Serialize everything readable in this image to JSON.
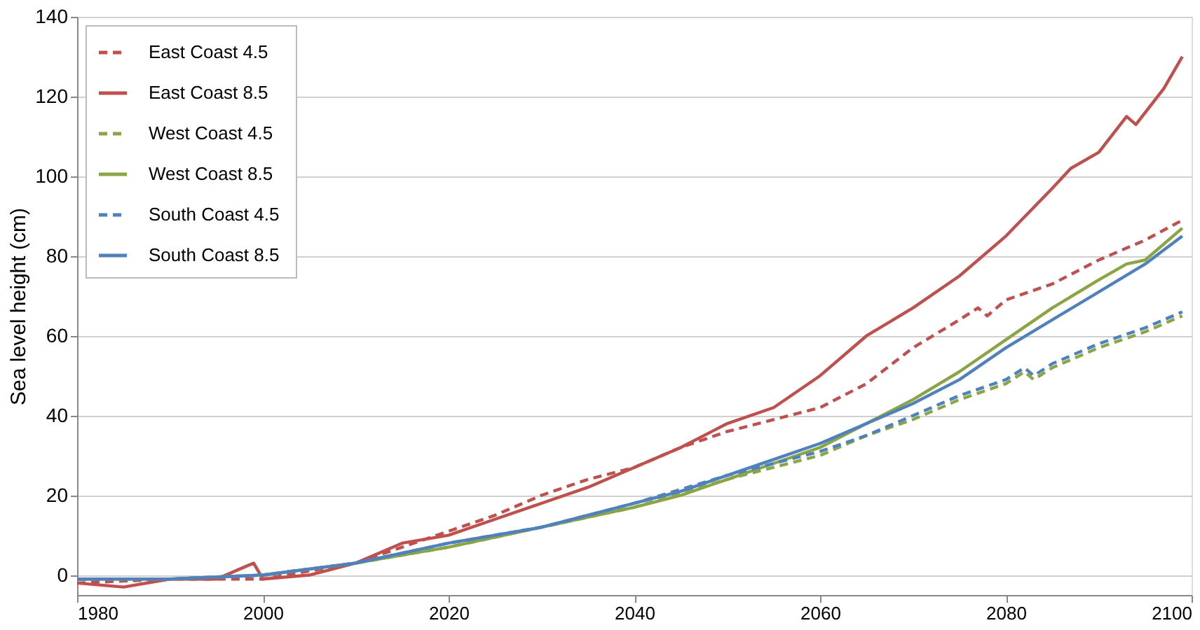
{
  "chart_data": {
    "type": "line",
    "ylabel": "Sea level height (cm)",
    "xlim": [
      1980,
      2100
    ],
    "xticks": [
      1980,
      2000,
      2020,
      2040,
      2060,
      2080,
      2100
    ],
    "ylim": [
      -5,
      140
    ],
    "yticks": [
      0,
      20,
      40,
      60,
      80,
      100,
      120,
      140
    ],
    "grid": "y",
    "legend": "top left",
    "marker": "none",
    "series": [
      {
        "name": "East Coast  4.5",
        "color": "#c0504d",
        "line_style": "dashed",
        "x": [
          1980,
          1990,
          2000,
          2010,
          2015,
          2020,
          2025,
          2030,
          2035,
          2040,
          2045,
          2050,
          2055,
          2060,
          2065,
          2070,
          2075,
          2077,
          2078,
          2080,
          2085,
          2090,
          2095,
          2099
        ],
        "values": [
          -2,
          -1,
          -1,
          3,
          7,
          11,
          15,
          20,
          24,
          27,
          32,
          36,
          39,
          42,
          48,
          57,
          64,
          67,
          65,
          69,
          73,
          79,
          84,
          89
        ]
      },
      {
        "name": "East Coast  8.5",
        "color": "#c0504d",
        "line_style": "solid",
        "x": [
          1980,
          1985,
          1990,
          1995,
          1998,
          1999,
          2000,
          2005,
          2010,
          2015,
          2020,
          2025,
          2030,
          2035,
          2040,
          2045,
          2050,
          2055,
          2060,
          2063,
          2065,
          2070,
          2075,
          2080,
          2085,
          2087,
          2090,
          2093,
          2094,
          2097,
          2099
        ],
        "values": [
          -2,
          -3,
          -1,
          -1,
          2,
          3,
          -1,
          0,
          3,
          8,
          10,
          14,
          18,
          22,
          27,
          32,
          38,
          42,
          50,
          56,
          60,
          67,
          75,
          85,
          97,
          102,
          106,
          115,
          113,
          122,
          130
        ]
      },
      {
        "name": "West Coast  4.5",
        "color": "#8aa644",
        "line_style": "dashed",
        "x": [
          1980,
          1990,
          2000,
          2010,
          2020,
          2030,
          2040,
          2050,
          2060,
          2065,
          2070,
          2075,
          2080,
          2082,
          2083,
          2085,
          2090,
          2095,
          2099
        ],
        "values": [
          -1,
          -1,
          0,
          3,
          7,
          12,
          17,
          24,
          30,
          35,
          39,
          44,
          48,
          51,
          49,
          52,
          57,
          61,
          65
        ]
      },
      {
        "name": "West Coast  8.5",
        "color": "#8aa644",
        "line_style": "solid",
        "x": [
          1980,
          1990,
          2000,
          2010,
          2020,
          2030,
          2040,
          2045,
          2050,
          2055,
          2060,
          2065,
          2070,
          2075,
          2080,
          2085,
          2090,
          2093,
          2095,
          2099
        ],
        "values": [
          -1,
          -1,
          0,
          3,
          7,
          12,
          17,
          20,
          24,
          28,
          32,
          38,
          44,
          51,
          59,
          67,
          74,
          78,
          79,
          87
        ]
      },
      {
        "name": "South Coast  4.5",
        "color": "#4f81bd",
        "line_style": "dashed",
        "x": [
          1980,
          1990,
          2000,
          2010,
          2020,
          2030,
          2040,
          2050,
          2060,
          2065,
          2070,
          2075,
          2080,
          2082,
          2083,
          2085,
          2090,
          2095,
          2099
        ],
        "values": [
          -1,
          -1,
          0,
          3,
          8,
          12,
          18,
          25,
          31,
          35,
          40,
          45,
          49,
          52,
          50,
          53,
          58,
          62,
          66
        ]
      },
      {
        "name": "South Coast  8.5",
        "color": "#4f81bd",
        "line_style": "solid",
        "x": [
          1980,
          1990,
          2000,
          2010,
          2020,
          2030,
          2040,
          2045,
          2050,
          2055,
          2060,
          2065,
          2070,
          2075,
          2080,
          2085,
          2090,
          2095,
          2099
        ],
        "values": [
          -1,
          -1,
          0,
          3,
          8,
          12,
          18,
          21,
          25,
          29,
          33,
          38,
          43,
          49,
          57,
          64,
          71,
          78,
          85
        ]
      }
    ]
  }
}
